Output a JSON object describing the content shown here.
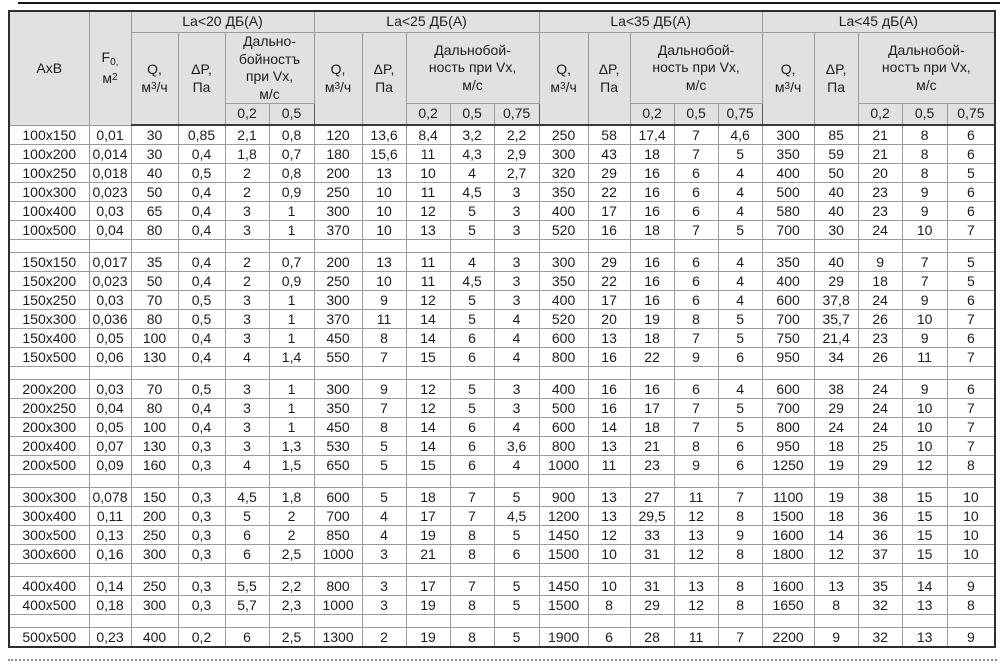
{
  "header": {
    "axb": "АхВ",
    "f": {
      "base": "F",
      "sub": "0,",
      "unit_base": "м",
      "unit_sup": "2"
    },
    "q": {
      "line1": "Q,",
      "unit_pre": "м",
      "unit_sup": "3",
      "unit_post": "/ч"
    },
    "dp": {
      "line1": "ΔP,",
      "line2": "Па"
    },
    "groups": [
      {
        "title": "La<20 ДБ(А)",
        "throw_lines": [
          "Дально-",
          "бойностъ",
          "при Vx,",
          "м/с"
        ],
        "speeds": [
          "0,2",
          "0,5"
        ]
      },
      {
        "title": "La<25 ДБ(А)",
        "throw_lines": [
          "Дальнобой-",
          "ность при Vx,",
          "м/с"
        ],
        "speeds": [
          "0,2",
          "0,5",
          "0,75"
        ]
      },
      {
        "title": "La<35 ДБ(А)",
        "throw_lines": [
          "Дальнобой-",
          "ность при Vx,",
          "м/с"
        ],
        "speeds": [
          "0,2",
          "0,5",
          "0,75"
        ]
      },
      {
        "title": "La<45 дБ(А)",
        "throw_lines": [
          "Дальнобой-",
          "ностъ при Vx,",
          "м/с"
        ],
        "speeds": [
          "0,2",
          "0,5",
          "0,75"
        ]
      }
    ]
  },
  "colors": {
    "header_bg": "#e1e1e1",
    "grid": "#9b9b9b",
    "outer_border": "#2e2e2e",
    "text": "#1c1c1c"
  },
  "table": {
    "rows": [
      {
        "axb": "100х150",
        "f": "0,01",
        "v": [
          "30",
          "0,85",
          "2,1",
          "0,8",
          "120",
          "13,6",
          "8,4",
          "3,2",
          "2,2",
          "250",
          "58",
          "17,4",
          "7",
          "4,6",
          "300",
          "85",
          "21",
          "8",
          "6"
        ]
      },
      {
        "axb": "100х200",
        "f": "0,014",
        "v": [
          "30",
          "0,4",
          "1,8",
          "0,7",
          "180",
          "15,6",
          "11",
          "4,3",
          "2,9",
          "300",
          "43",
          "18",
          "7",
          "5",
          "350",
          "59",
          "21",
          "8",
          "6"
        ]
      },
      {
        "axb": "100х250",
        "f": "0,018",
        "v": [
          "40",
          "0,5",
          "2",
          "0,8",
          "200",
          "13",
          "10",
          "4",
          "2,7",
          "320",
          "29",
          "16",
          "6",
          "4",
          "400",
          "50",
          "20",
          "8",
          "5"
        ]
      },
      {
        "axb": "100х300",
        "f": "0,023",
        "v": [
          "50",
          "0,4",
          "2",
          "0,9",
          "250",
          "10",
          "11",
          "4,5",
          "3",
          "350",
          "22",
          "16",
          "6",
          "4",
          "500",
          "40",
          "23",
          "9",
          "6"
        ]
      },
      {
        "axb": "100х400",
        "f": "0,03",
        "v": [
          "65",
          "0,4",
          "3",
          "1",
          "300",
          "10",
          "12",
          "5",
          "3",
          "400",
          "17",
          "16",
          "6",
          "4",
          "580",
          "40",
          "23",
          "9",
          "6"
        ]
      },
      {
        "axb": "100х500",
        "f": "0,04",
        "v": [
          "80",
          "0,4",
          "3",
          "1",
          "370",
          "10",
          "13",
          "5",
          "3",
          "520",
          "16",
          "18",
          "7",
          "5",
          "700",
          "30",
          "24",
          "10",
          "7"
        ]
      },
      {
        "sep": true
      },
      {
        "axb": "150х150",
        "f": "0,017",
        "v": [
          "35",
          "0,4",
          "2",
          "0,7",
          "200",
          "13",
          "11",
          "4",
          "3",
          "300",
          "29",
          "16",
          "6",
          "4",
          "350",
          "40",
          "9",
          "7",
          "5"
        ]
      },
      {
        "axb": "150х200",
        "f": "0,023",
        "v": [
          "50",
          "0,4",
          "2",
          "0,9",
          "250",
          "10",
          "11",
          "4,5",
          "3",
          "350",
          "22",
          "16",
          "6",
          "4",
          "400",
          "29",
          "18",
          "7",
          "5"
        ]
      },
      {
        "axb": "150х250",
        "f": "0,03",
        "v": [
          "70",
          "0,5",
          "3",
          "1",
          "300",
          "9",
          "12",
          "5",
          "3",
          "400",
          "17",
          "16",
          "6",
          "4",
          "600",
          "37,8",
          "24",
          "9",
          "6"
        ]
      },
      {
        "axb": "150х300",
        "f": "0,036",
        "v": [
          "80",
          "0,5",
          "3",
          "1",
          "370",
          "11",
          "14",
          "5",
          "4",
          "520",
          "20",
          "19",
          "8",
          "5",
          "700",
          "35,7",
          "26",
          "10",
          "7"
        ]
      },
      {
        "axb": "150х400",
        "f": "0,05",
        "v": [
          "100",
          "0,4",
          "3",
          "1",
          "450",
          "8",
          "14",
          "6",
          "4",
          "600",
          "13",
          "18",
          "7",
          "5",
          "750",
          "21,4",
          "23",
          "9",
          "6"
        ]
      },
      {
        "axb": "150х500",
        "f": "0,06",
        "v": [
          "130",
          "0,4",
          "4",
          "1,4",
          "550",
          "7",
          "15",
          "6",
          "4",
          "800",
          "16",
          "22",
          "9",
          "6",
          "950",
          "34",
          "26",
          "11",
          "7"
        ]
      },
      {
        "sep": true
      },
      {
        "axb": "200х200",
        "f": "0,03",
        "v": [
          "70",
          "0,5",
          "3",
          "1",
          "300",
          "9",
          "12",
          "5",
          "3",
          "400",
          "16",
          "16",
          "6",
          "4",
          "600",
          "38",
          "24",
          "9",
          "6"
        ]
      },
      {
        "axb": "200х250",
        "f": "0,04",
        "v": [
          "80",
          "0,4",
          "3",
          "1",
          "350",
          "7",
          "12",
          "5",
          "3",
          "500",
          "16",
          "17",
          "7",
          "5",
          "700",
          "29",
          "24",
          "10",
          "7"
        ]
      },
      {
        "axb": "200х300",
        "f": "0,05",
        "v": [
          "100",
          "0,4",
          "3",
          "1",
          "450",
          "8",
          "14",
          "6",
          "4",
          "600",
          "14",
          "18",
          "7",
          "5",
          "800",
          "24",
          "24",
          "10",
          "7"
        ]
      },
      {
        "axb": "200х400",
        "f": "0,07",
        "v": [
          "130",
          "0,3",
          "3",
          "1,3",
          "530",
          "5",
          "14",
          "6",
          "3,6",
          "800",
          "13",
          "21",
          "8",
          "6",
          "950",
          "18",
          "25",
          "10",
          "7"
        ]
      },
      {
        "axb": "200х500",
        "f": "0,09",
        "v": [
          "160",
          "0,3",
          "4",
          "1,5",
          "650",
          "5",
          "15",
          "6",
          "4",
          "1000",
          "11",
          "23",
          "9",
          "6",
          "1250",
          "19",
          "29",
          "12",
          "8"
        ]
      },
      {
        "sep": true
      },
      {
        "axb": "300х300",
        "f": "0,078",
        "v": [
          "150",
          "0,3",
          "4,5",
          "1,8",
          "600",
          "5",
          "18",
          "7",
          "5",
          "900",
          "13",
          "27",
          "11",
          "7",
          "1100",
          "19",
          "38",
          "15",
          "10"
        ]
      },
      {
        "axb": "300х400",
        "f": "0,11",
        "v": [
          "200",
          "0,3",
          "5",
          "2",
          "700",
          "4",
          "17",
          "7",
          "4,5",
          "1200",
          "13",
          "29,5",
          "12",
          "8",
          "1500",
          "18",
          "36",
          "15",
          "10"
        ]
      },
      {
        "axb": "300х500",
        "f": "0,13",
        "v": [
          "250",
          "0,3",
          "6",
          "2",
          "850",
          "4",
          "19",
          "8",
          "5",
          "1450",
          "12",
          "33",
          "13",
          "9",
          "1600",
          "14",
          "36",
          "15",
          "10"
        ]
      },
      {
        "axb": "300х600",
        "f": "0,16",
        "v": [
          "300",
          "0,3",
          "6",
          "2,5",
          "1000",
          "3",
          "21",
          "8",
          "6",
          "1500",
          "10",
          "31",
          "12",
          "8",
          "1800",
          "12",
          "37",
          "15",
          "10"
        ]
      },
      {
        "sep": true
      },
      {
        "axb": "400х400",
        "f": "0,14",
        "v": [
          "250",
          "0,3",
          "5,5",
          "2,2",
          "800",
          "3",
          "17",
          "7",
          "5",
          "1450",
          "10",
          "31",
          "13",
          "8",
          "1600",
          "13",
          "35",
          "14",
          "9"
        ]
      },
      {
        "axb": "400х500",
        "f": "0,18",
        "v": [
          "300",
          "0,3",
          "5,7",
          "2,3",
          "1000",
          "3",
          "19",
          "8",
          "5",
          "1500",
          "8",
          "29",
          "12",
          "8",
          "1650",
          "8",
          "32",
          "13",
          "8"
        ]
      },
      {
        "sep": true
      },
      {
        "axb": "500х500",
        "f": "0,23",
        "v": [
          "400",
          "0,2",
          "6",
          "2,5",
          "1300",
          "2",
          "19",
          "8",
          "5",
          "1900",
          "6",
          "28",
          "11",
          "7",
          "2200",
          "9",
          "32",
          "13",
          "9"
        ]
      }
    ]
  }
}
